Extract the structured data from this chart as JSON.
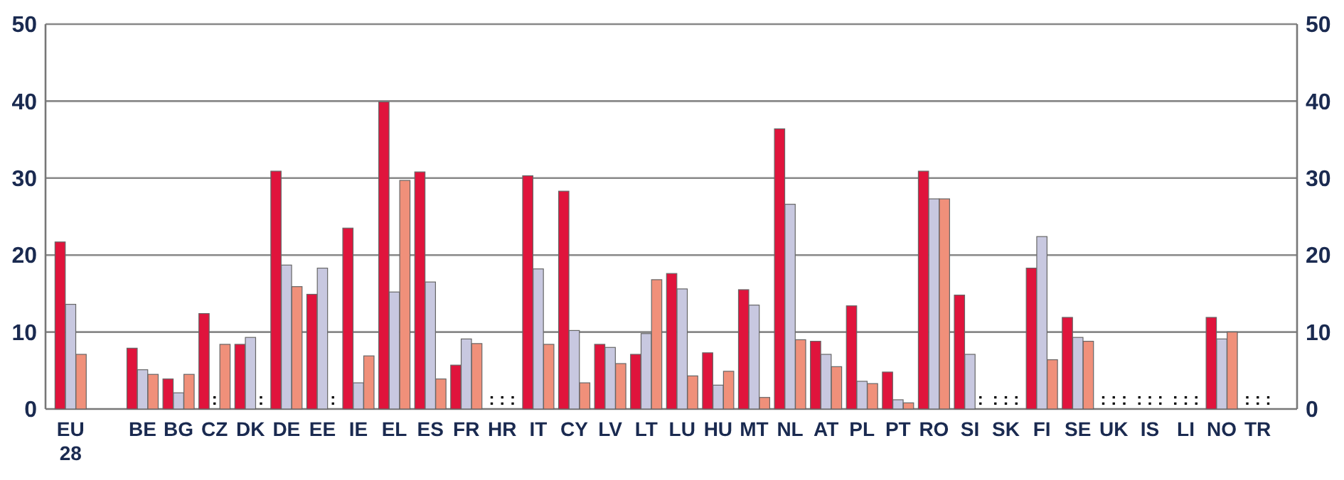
{
  "chart_data": {
    "type": "bar",
    "categories": [
      "EU 28",
      null,
      "BE",
      "BG",
      "CZ",
      "DK",
      "DE",
      "EE",
      "IE",
      "EL",
      "ES",
      "FR",
      "HR",
      "IT",
      "CY",
      "LV",
      "LT",
      "LU",
      "HU",
      "MT",
      "NL",
      "AT",
      "PL",
      "PT",
      "RO",
      "SI",
      "SK",
      "FI",
      "SE",
      "UK",
      "IS",
      "LI",
      "NO",
      "TR"
    ],
    "series": [
      {
        "color": "#e0143c",
        "values": [
          21.7,
          null,
          7.9,
          3.9,
          12.4,
          8.4,
          30.9,
          14.9,
          23.5,
          39.9,
          30.8,
          5.7,
          null,
          30.3,
          28.3,
          8.4,
          7.1,
          17.6,
          7.3,
          15.5,
          36.4,
          8.8,
          13.4,
          4.8,
          30.9,
          14.8,
          null,
          18.3,
          11.9,
          null,
          null,
          null,
          11.9,
          null
        ],
        "value_labels": [
          null,
          null,
          null,
          null,
          null,
          null,
          null,
          null,
          null,
          null,
          null,
          null,
          ":",
          null,
          null,
          null,
          null,
          null,
          null,
          null,
          null,
          null,
          null,
          null,
          null,
          null,
          ":",
          null,
          null,
          ":",
          ":",
          ":",
          null,
          ":"
        ]
      },
      {
        "color": "#c8c8e0",
        "values": [
          13.6,
          null,
          5.1,
          2.1,
          null,
          9.3,
          18.7,
          18.3,
          3.4,
          15.2,
          16.5,
          9.1,
          null,
          18.2,
          10.2,
          8.0,
          9.8,
          15.6,
          3.1,
          13.5,
          26.6,
          7.1,
          3.6,
          1.2,
          27.3,
          7.1,
          null,
          22.4,
          9.3,
          null,
          null,
          null,
          9.1,
          null
        ],
        "value_labels": [
          null,
          null,
          null,
          null,
          ":",
          null,
          null,
          null,
          null,
          null,
          null,
          null,
          ":",
          null,
          null,
          null,
          null,
          null,
          null,
          null,
          null,
          null,
          null,
          null,
          null,
          null,
          ":",
          null,
          null,
          ":",
          ":",
          ":",
          null,
          ":"
        ]
      },
      {
        "color": "#f0907a",
        "values": [
          7.1,
          null,
          4.5,
          4.5,
          8.4,
          null,
          15.9,
          null,
          6.9,
          29.7,
          3.9,
          8.5,
          null,
          8.4,
          3.4,
          5.9,
          16.8,
          4.3,
          4.9,
          1.5,
          9.0,
          5.5,
          3.3,
          0.8,
          27.3,
          null,
          null,
          6.4,
          8.8,
          null,
          null,
          null,
          10.0,
          null
        ],
        "value_labels": [
          null,
          null,
          null,
          null,
          null,
          ":",
          null,
          ":",
          null,
          null,
          null,
          null,
          ":",
          null,
          null,
          null,
          null,
          null,
          null,
          null,
          null,
          null,
          null,
          null,
          null,
          ":",
          ":",
          null,
          null,
          ":",
          ":",
          ":",
          null,
          ":"
        ]
      }
    ],
    "ylim": [
      0,
      50
    ],
    "yticks": [
      0,
      10,
      20,
      30,
      40,
      50
    ],
    "y2lim": [
      0,
      50
    ],
    "y2ticks": [
      0,
      10,
      20,
      30,
      40,
      50
    ],
    "grid": "y"
  }
}
